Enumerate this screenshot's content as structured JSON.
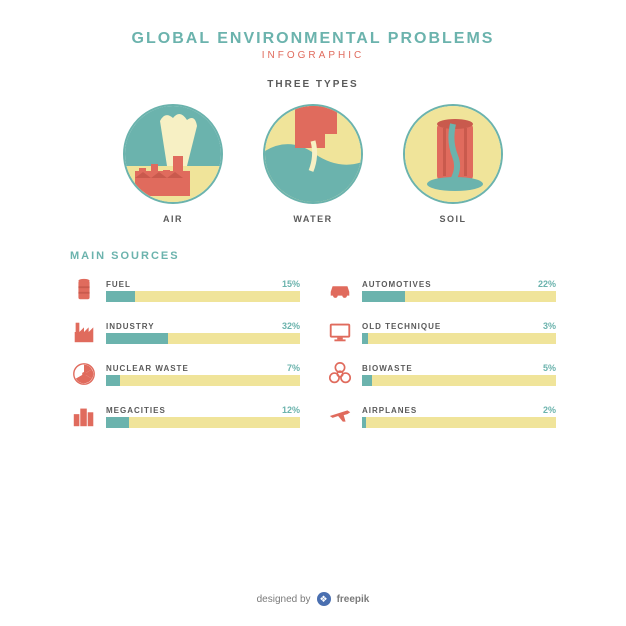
{
  "colors": {
    "teal": "#6bb3ad",
    "coral": "#e06b5d",
    "yellow": "#f0e49a",
    "cream": "#f7f0c4",
    "dark": "#5a5a5a",
    "footer_gray": "#7a7a7a",
    "logo_bg": "#4a6fb0"
  },
  "header": {
    "title": "GLOBAL ENVIRONMENTAL PROBLEMS",
    "title_color": "#6bb3ad",
    "subtitle": "INFOGRAPHIC",
    "subtitle_color": "#e06b5d"
  },
  "types": {
    "section_label": "THREE TYPES",
    "section_label_color": "#5a5a5a",
    "circle_border_color": "#6bb3ad",
    "items": [
      {
        "id": "air",
        "label": "AIR"
      },
      {
        "id": "water",
        "label": "WATER"
      },
      {
        "id": "soil",
        "label": "SOIL"
      }
    ],
    "label_color": "#5a5a5a"
  },
  "sources": {
    "header": "MAIN SOURCES",
    "header_color": "#6bb3ad",
    "label_color": "#5a5a5a",
    "pct_color": "#6bb3ad",
    "bar_track_color": "#f0e49a",
    "bar_fill_color": "#6bb3ad",
    "icon_color": "#e06b5d",
    "items": [
      {
        "name": "FUEL",
        "pct": 15,
        "icon": "barrel"
      },
      {
        "name": "AUTOMOTIVES",
        "pct": 22,
        "icon": "car"
      },
      {
        "name": "INDUSTRY",
        "pct": 32,
        "icon": "factory"
      },
      {
        "name": "OLD TECHNIQUE",
        "pct": 3,
        "icon": "monitor"
      },
      {
        "name": "NUCLEAR WASTE",
        "pct": 7,
        "icon": "radiation"
      },
      {
        "name": "BIOWASTE",
        "pct": 5,
        "icon": "biohazard"
      },
      {
        "name": "MEGACITIES",
        "pct": 12,
        "icon": "city"
      },
      {
        "name": "AIRPLANES",
        "pct": 2,
        "icon": "plane"
      }
    ]
  },
  "footer": {
    "text_prefix": "designed by",
    "brand": "freepik",
    "logo_glyph": "❖"
  }
}
